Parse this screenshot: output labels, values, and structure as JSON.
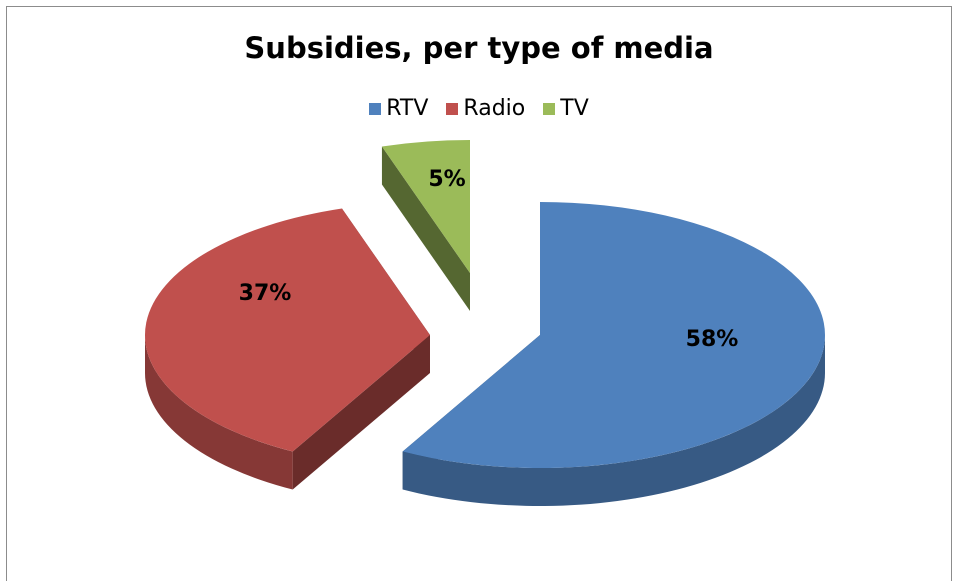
{
  "chart_data": {
    "type": "pie",
    "title": "Subsidies, per type of media",
    "legend_position": "top",
    "categories": [
      "RTV",
      "Radio",
      "TV"
    ],
    "values": [
      58,
      37,
      5
    ],
    "data_labels": [
      "58%",
      "37%",
      "5%"
    ],
    "colors": {
      "RTV": "#4f81bd",
      "Radio": "#c0504d",
      "TV": "#9bbb59"
    }
  }
}
